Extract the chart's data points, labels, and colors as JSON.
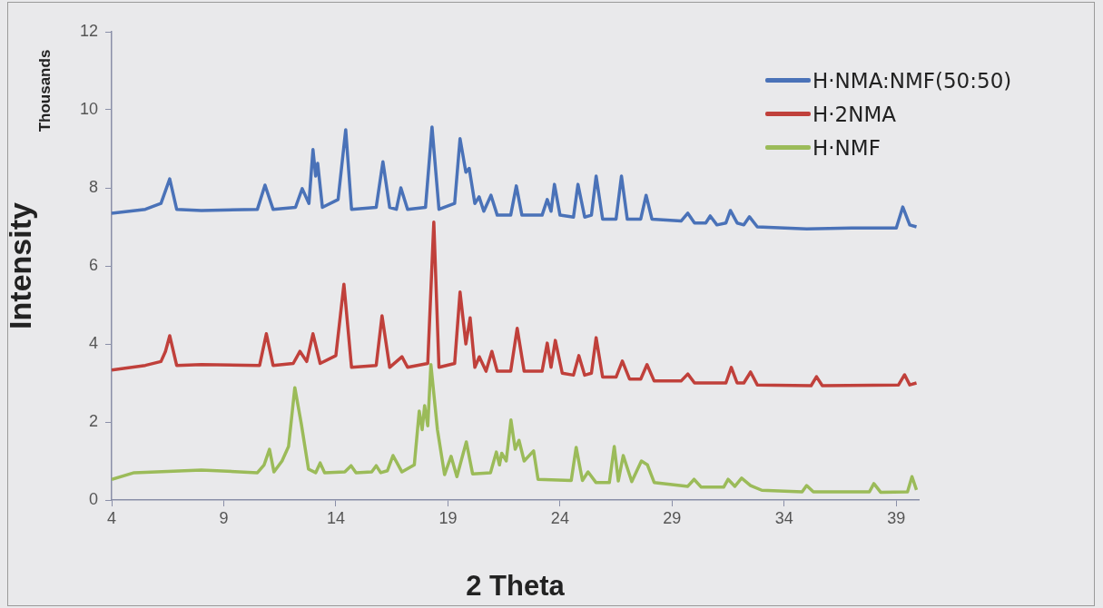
{
  "chart_data": {
    "type": "line",
    "xlabel": "2 Theta",
    "ylabel": "Intensity",
    "annotations": [
      "Thousands"
    ],
    "xlim": [
      4,
      40
    ],
    "xticks": [
      4,
      9,
      14,
      19,
      24,
      29,
      34,
      39
    ],
    "ylim": [
      0,
      12
    ],
    "yticks": [
      0,
      2,
      4,
      6,
      8,
      10,
      12
    ],
    "grid": false,
    "legend": "top right",
    "marker": "none",
    "line_style": "solid",
    "series": [
      {
        "name": "H·NMA:NMF(50:50)",
        "color": "#4a72b8",
        "x": [
          4,
          5.5,
          6.2,
          6.59,
          6.9,
          8,
          10.5,
          10.84,
          11.2,
          12.2,
          12.5,
          12.8,
          12.98,
          13.1,
          13.19,
          13.4,
          14.1,
          14.44,
          14.7,
          15.8,
          16.1,
          16.4,
          16.7,
          16.9,
          17.2,
          18,
          18.29,
          18.6,
          19.3,
          19.54,
          19.8,
          19.95,
          20.2,
          20.39,
          20.6,
          20.92,
          21.2,
          21.8,
          22.05,
          22.3,
          23.2,
          23.43,
          23.6,
          23.75,
          24,
          24.6,
          24.8,
          25.1,
          25.4,
          25.61,
          25.9,
          26.5,
          26.74,
          27,
          27.6,
          27.84,
          28.1,
          29.4,
          29.7,
          30,
          30.5,
          30.7,
          31,
          31.4,
          31.6,
          31.9,
          32.2,
          32.45,
          32.8,
          35,
          37,
          39,
          39.29,
          39.6,
          39.9
        ],
        "values": [
          7.35,
          7.45,
          7.6,
          8.23,
          7.45,
          7.42,
          7.45,
          8.07,
          7.45,
          7.5,
          7.98,
          7.6,
          8.98,
          8.3,
          8.63,
          7.5,
          7.7,
          9.49,
          7.45,
          7.5,
          8.67,
          7.5,
          7.45,
          8.0,
          7.45,
          7.5,
          9.56,
          7.45,
          7.6,
          9.26,
          8.4,
          8.5,
          7.6,
          7.77,
          7.4,
          7.81,
          7.3,
          7.3,
          8.05,
          7.3,
          7.3,
          7.7,
          7.4,
          8.09,
          7.3,
          7.25,
          8.09,
          7.25,
          7.3,
          8.3,
          7.2,
          7.2,
          8.3,
          7.2,
          7.2,
          7.81,
          7.2,
          7.15,
          7.35,
          7.1,
          7.1,
          7.28,
          7.05,
          7.1,
          7.42,
          7.1,
          7.05,
          7.26,
          7.0,
          6.95,
          6.97,
          6.97,
          7.51,
          7.05,
          7.0
        ]
      },
      {
        "name": "H·2NMA",
        "color": "#c0403b",
        "x": [
          4,
          5.5,
          6.2,
          6.4,
          6.59,
          6.9,
          8,
          10.6,
          10.9,
          11.2,
          12.1,
          12.4,
          12.7,
          12.98,
          13.3,
          14.0,
          14.36,
          14.7,
          15.8,
          16.06,
          16.4,
          16.95,
          17.2,
          18.1,
          18.37,
          18.6,
          19.3,
          19.54,
          19.8,
          19.99,
          20.2,
          20.4,
          20.7,
          20.96,
          21.2,
          21.8,
          22.09,
          22.4,
          23.2,
          23.43,
          23.6,
          23.79,
          24.1,
          24.6,
          24.84,
          25.1,
          25.4,
          25.61,
          25.9,
          26.5,
          26.78,
          27.1,
          27.6,
          27.88,
          28.2,
          29.4,
          29.7,
          30,
          31.4,
          31.64,
          31.9,
          32.2,
          32.5,
          32.8,
          35.2,
          35.44,
          35.7,
          39.1,
          39.37,
          39.6,
          39.9
        ],
        "values": [
          3.33,
          3.45,
          3.55,
          3.81,
          4.21,
          3.45,
          3.47,
          3.45,
          4.26,
          3.45,
          3.5,
          3.81,
          3.55,
          4.26,
          3.5,
          3.7,
          5.53,
          3.4,
          3.45,
          4.72,
          3.4,
          3.67,
          3.4,
          3.5,
          7.12,
          3.4,
          3.5,
          5.33,
          4.0,
          4.67,
          3.4,
          3.67,
          3.3,
          3.81,
          3.3,
          3.3,
          4.4,
          3.3,
          3.3,
          4.02,
          3.4,
          4.09,
          3.25,
          3.2,
          3.7,
          3.2,
          3.25,
          4.16,
          3.15,
          3.15,
          3.56,
          3.1,
          3.1,
          3.47,
          3.05,
          3.05,
          3.23,
          3.0,
          3.0,
          3.4,
          3.0,
          3.0,
          3.28,
          2.95,
          2.93,
          3.16,
          2.93,
          2.95,
          3.21,
          2.95,
          3.0
        ]
      },
      {
        "name": "H·NMF",
        "color": "#9bbb59",
        "x": [
          4,
          5,
          8,
          10.5,
          10.8,
          11.04,
          11.24,
          11.6,
          11.89,
          12.17,
          12.46,
          12.78,
          13.1,
          13.3,
          13.5,
          14.4,
          14.68,
          14.9,
          15.6,
          15.8,
          16.0,
          16.3,
          16.55,
          16.95,
          17.5,
          17.72,
          17.85,
          17.96,
          18.1,
          18.24,
          18.53,
          18.85,
          19.14,
          19.4,
          19.82,
          20.1,
          20.9,
          21.16,
          21.3,
          21.4,
          21.6,
          21.81,
          22.0,
          22.17,
          22.4,
          22.82,
          23.02,
          24.5,
          24.72,
          25.0,
          25.25,
          25.6,
          26.2,
          26.42,
          26.6,
          26.82,
          27.2,
          27.63,
          27.9,
          28.2,
          29.7,
          29.98,
          30.3,
          31.3,
          31.5,
          31.8,
          32.1,
          32.5,
          33,
          34.8,
          35.0,
          35.3,
          37.8,
          38.0,
          38.3,
          39.5,
          39.7,
          39.9
        ],
        "values": [
          0.53,
          0.7,
          0.77,
          0.7,
          0.9,
          1.3,
          0.72,
          1.0,
          1.37,
          2.88,
          1.95,
          0.79,
          0.7,
          0.95,
          0.7,
          0.72,
          0.88,
          0.7,
          0.72,
          0.88,
          0.7,
          0.75,
          1.14,
          0.72,
          0.9,
          2.28,
          1.8,
          2.42,
          1.9,
          3.47,
          1.81,
          0.65,
          1.12,
          0.6,
          1.49,
          0.67,
          0.7,
          1.23,
          0.9,
          1.2,
          1.0,
          2.05,
          1.3,
          1.53,
          1.0,
          1.26,
          0.53,
          0.5,
          1.35,
          0.5,
          0.72,
          0.45,
          0.45,
          1.37,
          0.49,
          1.14,
          0.47,
          1.0,
          0.9,
          0.45,
          0.35,
          0.53,
          0.33,
          0.33,
          0.53,
          0.35,
          0.56,
          0.37,
          0.25,
          0.21,
          0.37,
          0.21,
          0.21,
          0.42,
          0.2,
          0.21,
          0.6,
          0.26
        ]
      }
    ]
  }
}
